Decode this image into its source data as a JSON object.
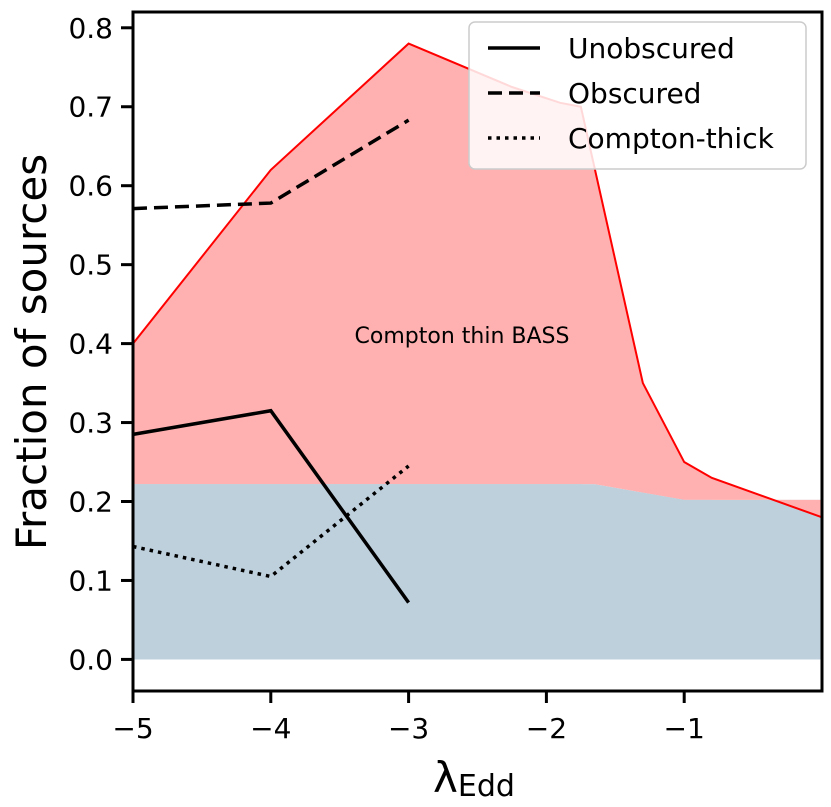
{
  "chart_data": {
    "type": "line",
    "xlabel": "λ",
    "xlabel_subscript": "Edd",
    "ylabel": "Fraction of sources",
    "xlim": [
      -5,
      0.0
    ],
    "ylim": [
      -0.04,
      0.82
    ],
    "xticks": [
      -5,
      -4,
      -3,
      -2,
      -1
    ],
    "xtick_labels": [
      "−5",
      "−4",
      "−3",
      "−2",
      "−1"
    ],
    "yticks": [
      0.0,
      0.1,
      0.2,
      0.3,
      0.4,
      0.5,
      0.6,
      0.7,
      0.8
    ],
    "ytick_labels": [
      "0.0",
      "0.1",
      "0.2",
      "0.3",
      "0.4",
      "0.5",
      "0.6",
      "0.7",
      "0.8"
    ],
    "grid": false,
    "legend_position": "top-right",
    "series": [
      {
        "name": "Unobscured",
        "style": "solid",
        "color": "#000000",
        "x": [
          -5,
          -4,
          -3
        ],
        "y": [
          0.285,
          0.315,
          0.072
        ]
      },
      {
        "name": "Obscured",
        "style": "dashed",
        "color": "#000000",
        "x": [
          -5,
          -4,
          -3
        ],
        "y": [
          0.571,
          0.578,
          0.683
        ]
      },
      {
        "name": "Compton-thick",
        "style": "dotted",
        "color": "#000000",
        "x": [
          -5,
          -4,
          -3
        ],
        "y": [
          0.143,
          0.105,
          0.245
        ]
      }
    ],
    "bands": [
      {
        "label": "",
        "fill": "#bfd0dd",
        "x": [
          -5,
          -1.65,
          -1.0,
          0.0
        ],
        "lower": [
          0.0,
          0.0,
          0.0,
          0.0
        ],
        "upper": [
          0.222,
          0.222,
          0.202,
          0.202
        ]
      },
      {
        "label": "Compton thin BASS",
        "fill": "#ffb0b0",
        "edge_color": "#ff0000",
        "x": [
          -5,
          -4,
          -3,
          -2.25,
          -1.9,
          -1.75,
          -1.3,
          -1.0,
          -0.8,
          0.0
        ],
        "upper": [
          0.4,
          0.62,
          0.78,
          0.725,
          0.705,
          0.7,
          0.35,
          0.25,
          0.23,
          0.18
        ]
      }
    ],
    "annotation": "Compton thin BASS"
  }
}
